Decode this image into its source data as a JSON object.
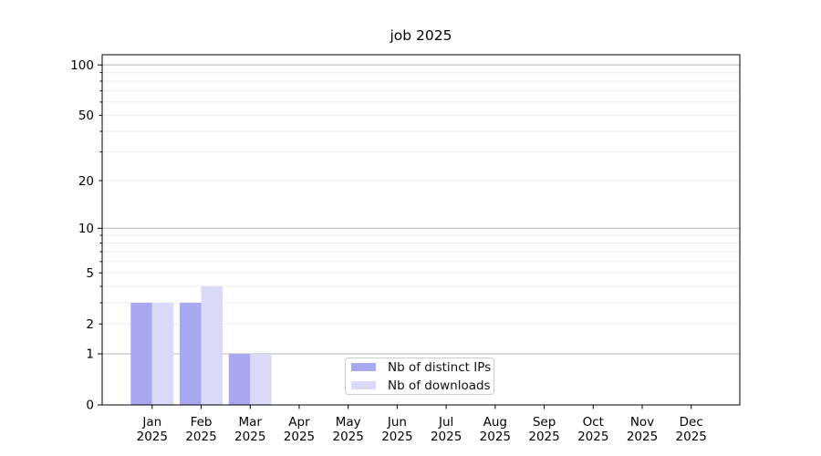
{
  "chart_data": {
    "type": "bar",
    "title": "job 2025",
    "categories": [
      "Jan",
      "Feb",
      "Mar",
      "Apr",
      "May",
      "Jun",
      "Jul",
      "Aug",
      "Sep",
      "Oct",
      "Nov",
      "Dec"
    ],
    "category_year": "2025",
    "series": [
      {
        "name": "Nb of distinct IPs",
        "color": "#a8a8f0",
        "values": [
          3,
          3,
          1,
          0,
          0,
          0,
          0,
          0,
          0,
          0,
          0,
          0
        ]
      },
      {
        "name": "Nb of downloads",
        "color": "#d9d9f8",
        "values": [
          3,
          4,
          1,
          0,
          0,
          0,
          0,
          0,
          0,
          0,
          0,
          0
        ]
      }
    ],
    "yscale": "log1p",
    "ylim": [
      0,
      115
    ],
    "yticks_labeled": [
      0,
      1,
      2,
      5,
      10,
      20,
      50,
      100
    ],
    "yticks_major": [
      1,
      10,
      100
    ],
    "yticks_minor": [
      2,
      3,
      4,
      5,
      6,
      7,
      8,
      9,
      20,
      30,
      40,
      50,
      60,
      70,
      80,
      90
    ],
    "grid": {
      "major_color": "#b5b5b5",
      "minor_color": "#ebebeb"
    },
    "axis_color": "#000000",
    "legend_position": "lower center"
  }
}
